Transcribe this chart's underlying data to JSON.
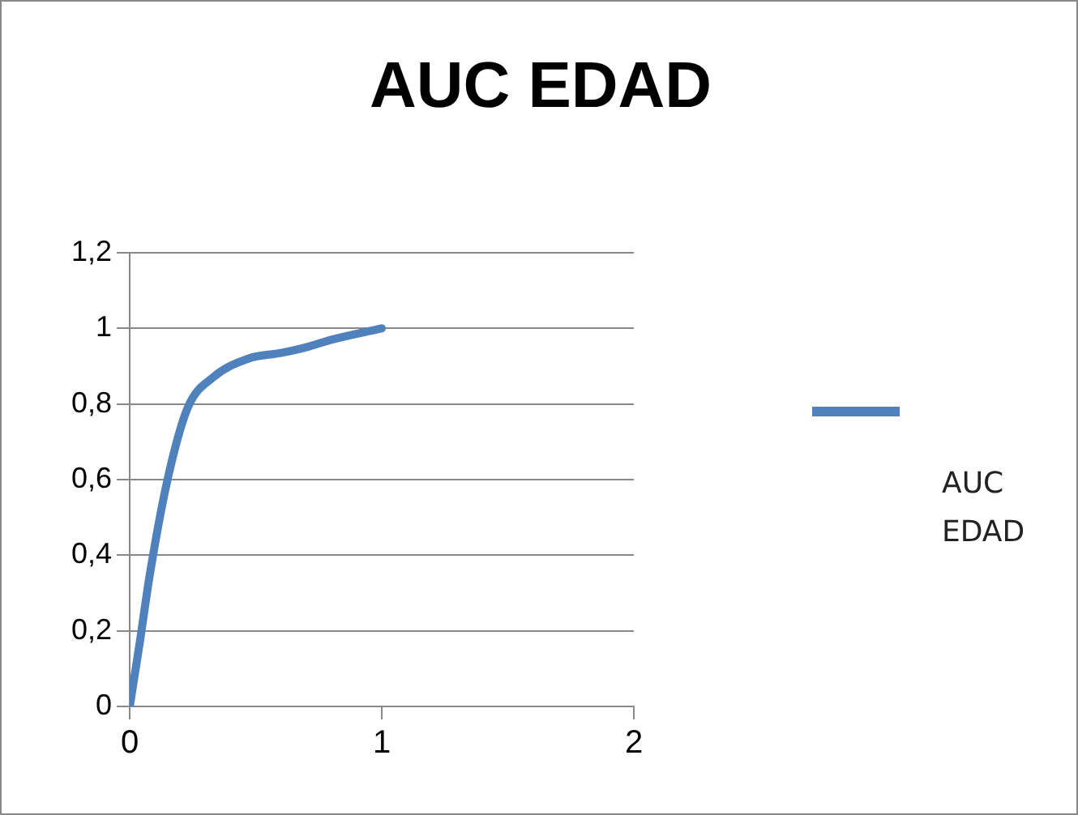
{
  "chart_data": {
    "type": "line",
    "title": "AUC EDAD",
    "x": [
      0,
      0.04,
      0.08,
      0.15,
      0.23,
      0.33,
      0.47,
      0.6,
      0.7,
      0.8,
      1
    ],
    "series": [
      {
        "name": "AUC EDAD",
        "color": "#4f81bd",
        "values": [
          0,
          0.17,
          0.35,
          0.6,
          0.79,
          0.87,
          0.92,
          0.935,
          0.95,
          0.97,
          1
        ]
      }
    ],
    "xlim": [
      0,
      2
    ],
    "xticks": [
      0,
      1,
      2
    ],
    "ylim": [
      0,
      1.2
    ],
    "yticks": [
      {
        "value": 0,
        "label": "0"
      },
      {
        "value": 0.2,
        "label": "0,2"
      },
      {
        "value": 0.4,
        "label": "0,4"
      },
      {
        "value": 0.6,
        "label": "0,6"
      },
      {
        "value": 0.8,
        "label": "0,8"
      },
      {
        "value": 1,
        "label": "1"
      },
      {
        "value": 1.2,
        "label": "1,2"
      }
    ],
    "grid": "y",
    "legend": "right",
    "marker": "none"
  }
}
